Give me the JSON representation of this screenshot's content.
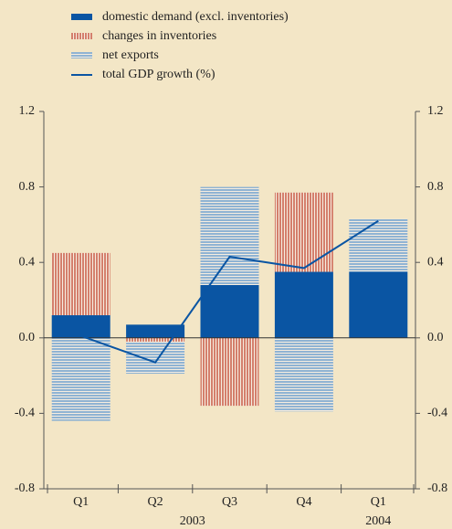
{
  "chart_data": {
    "type": "bar",
    "stacked": true,
    "categories": [
      "Q1",
      "Q2",
      "Q3",
      "Q4",
      "Q1"
    ],
    "groups": [
      {
        "name": "2003",
        "size": 4
      },
      {
        "name": "2004",
        "size": 1
      }
    ],
    "series": [
      {
        "name": "domestic demand (excl. inventories)",
        "type": "bar",
        "pattern": "solid",
        "color": "#0a55a3",
        "values": [
          0.12,
          0.07,
          0.28,
          0.35,
          0.35
        ]
      },
      {
        "name": "changes in inventories",
        "type": "bar",
        "pattern": "vertical-stripes",
        "color": "#d47f6c",
        "values": [
          0.33,
          -0.02,
          -0.36,
          0.42,
          0
        ]
      },
      {
        "name": "net exports",
        "type": "bar",
        "pattern": "horizontal-stripes",
        "color": "#8fb3d3",
        "values": [
          -0.44,
          -0.17,
          0.52,
          -0.39,
          0.28
        ]
      },
      {
        "name": "total GDP growth (%)",
        "type": "line",
        "axis": "y2",
        "color": "#0a55a3",
        "values": [
          0.01,
          -0.13,
          0.43,
          0.37,
          0.62
        ]
      }
    ],
    "ylim": [
      -0.8,
      1.2
    ],
    "yticks": [
      -0.8,
      -0.4,
      {
        "value": 0,
        "label": "0.0"
      },
      0.4,
      0.8,
      1.2
    ],
    "y2lim": [
      -0.8,
      1.2
    ],
    "y2ticks": [
      -0.8,
      -0.4,
      {
        "value": 0,
        "label": "0.0"
      },
      0.4,
      0.8,
      1.2
    ],
    "legend": "top-left"
  }
}
